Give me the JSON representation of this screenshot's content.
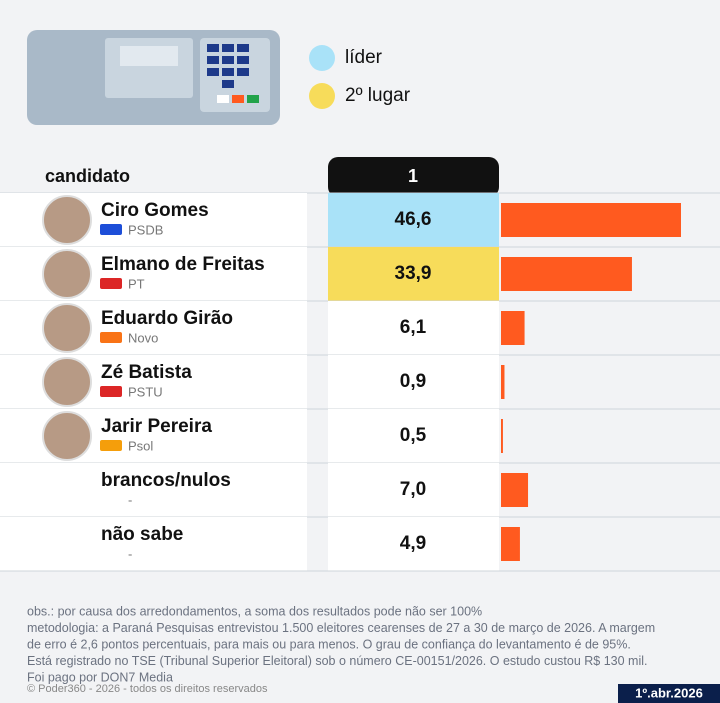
{
  "chart_data": {
    "type": "bar",
    "legend": [
      {
        "name": "líder",
        "color": "#a9e2f8"
      },
      {
        "name": "2º lugar",
        "color": "#f7dc5a"
      }
    ],
    "row_header": "candidato",
    "column_header": "1",
    "categories": [
      "Ciro Gomes",
      "Elmano de Freitas",
      "Eduardo Girão",
      "Zé Batista",
      "Jarir Pereira",
      "brancos/nulos",
      "não sabe"
    ],
    "parties": [
      "PSDB",
      "PT",
      "Novo",
      "PSTU",
      "Psol",
      "-",
      "-"
    ],
    "values": [
      46.6,
      33.9,
      6.1,
      0.9,
      0.5,
      7.0,
      4.9
    ],
    "value_labels": [
      "46,6",
      "33,9",
      "6,1",
      "0,9",
      "0,5",
      "7,0",
      "4,9"
    ],
    "color": "#ff5a1f",
    "notes": [
      "obs.: por causa dos arredondamentos, a soma dos resultados pode não ser 100%",
      "metodologia: a Paraná Pesquisas entrevistou 1.500 eleitores cearenses de 27 a 30 de março de 2026. A margem",
      "de erro é 2,6 pontos percentuais, para mais ou para menos. O grau de confiança do levantamento é de 95%.",
      "Está registrado no TSE (Tribunal Superior Eleitoral) sob o número CE-00151/2026. O estudo custou R$ 130 mil.",
      "Foi pago por DON7 Media"
    ],
    "copyright": "© Poder360 - 2026 - todos os direitos reservados",
    "date": "1º.abr.2026"
  }
}
